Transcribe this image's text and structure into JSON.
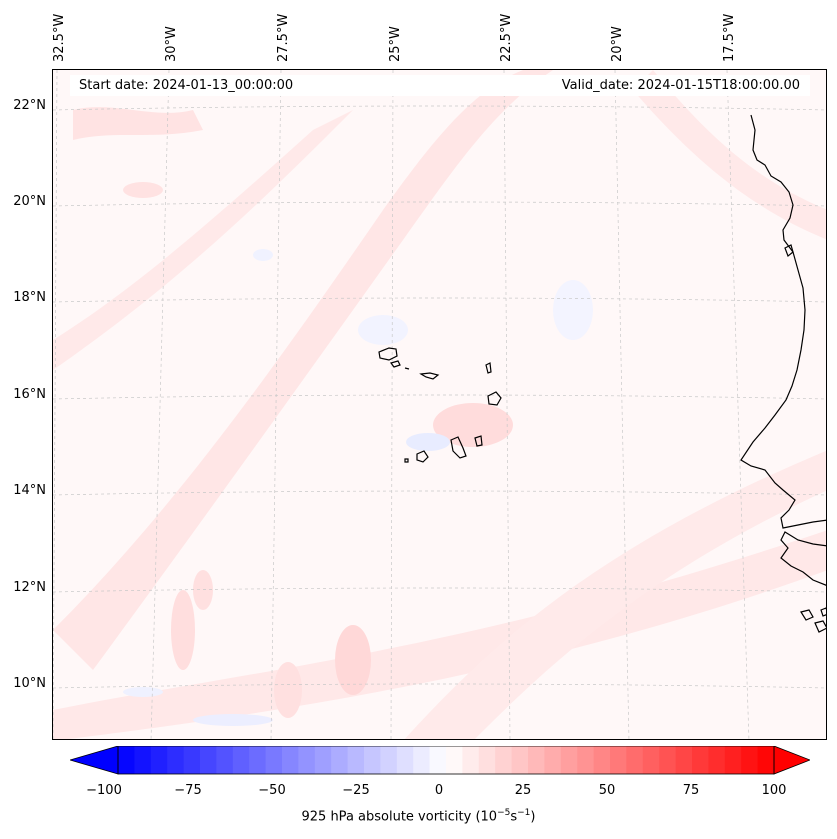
{
  "header": {
    "start_date": "Start date: 2024-01-13_00:00:00",
    "valid_date": "Valid_date: 2024-01-15T18:00:00.00"
  },
  "map": {
    "longitude_labels": [
      "32.5°W",
      "30°W",
      "27.5°W",
      "25°W",
      "22.5°W",
      "20°W",
      "17.5°W"
    ],
    "latitude_labels": [
      "22°N",
      "20°N",
      "18°N",
      "16°N",
      "14°N",
      "12°N",
      "10°N"
    ],
    "field_colors": {
      "background": "#fff8f8",
      "light_positive": "#ffe8e8",
      "medium_positive": "#ffd6d6",
      "light_negative": "#eef0ff",
      "coastline": "#000000",
      "gridline": "#c8c8c8"
    }
  },
  "colorbar": {
    "ticks": [
      "−100",
      "−75",
      "−50",
      "−25",
      "0",
      "25",
      "50",
      "75",
      "100"
    ],
    "min": -100,
    "max": 100,
    "low_color": "#0000ff",
    "mid_color": "#ffffff",
    "high_color": "#ff0000",
    "label_main": "925 hPa absolute vorticity (10",
    "label_exp1": "−5",
    "label_mid": "s",
    "label_exp2": "−1",
    "label_end": ")"
  }
}
